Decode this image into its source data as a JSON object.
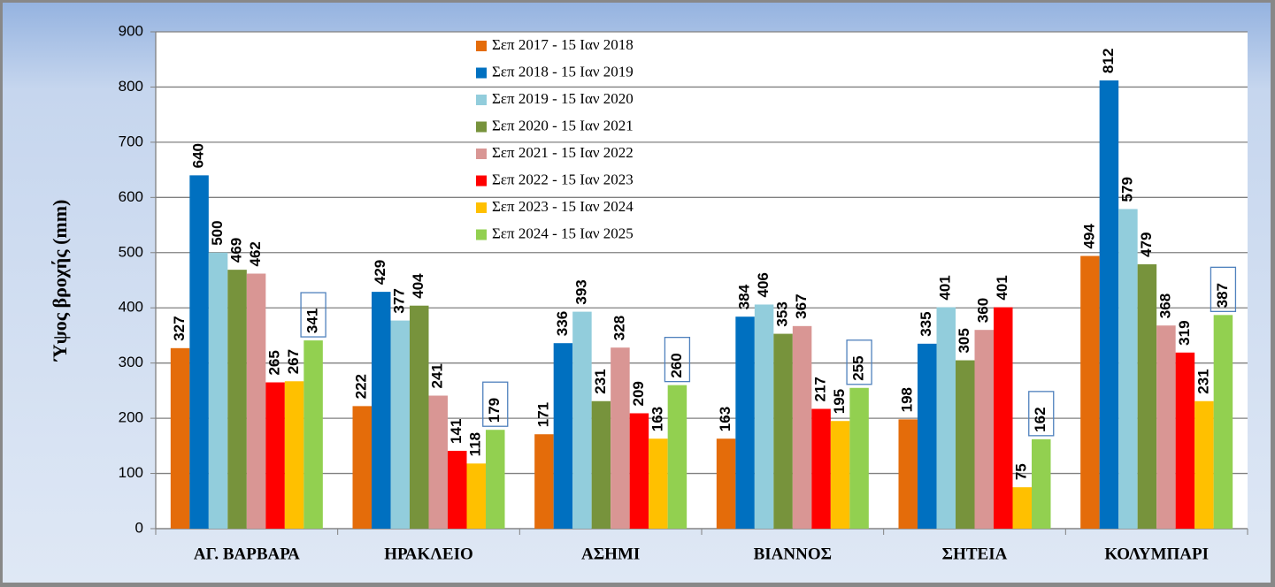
{
  "chart_data": {
    "type": "bar",
    "y_label": "Ύψος βροχής (mm)",
    "categories": [
      "ΑΓ. ΒΑΡΒΑΡΑ",
      "ΗΡΑΚΛΕΙΟ",
      "ΑΣΗΜΙ",
      "ΒΙΑΝΝΟΣ",
      "ΣΗΤΕΙΑ",
      "ΚΟΛΥΜΠΑΡΙ"
    ],
    "series": [
      {
        "name": "Σεπ 2017 - 15 Ιαν 2018",
        "color": "#e46c0a",
        "values": [
          327,
          222,
          171,
          163,
          198,
          494
        ]
      },
      {
        "name": "Σεπ 2018 - 15 Ιαν 2019",
        "color": "#0070c0",
        "values": [
          640,
          429,
          336,
          384,
          335,
          812
        ]
      },
      {
        "name": "Σεπ 2019 - 15 Ιαν 2020",
        "color": "#92cddc",
        "values": [
          500,
          377,
          393,
          406,
          401,
          579
        ]
      },
      {
        "name": "Σεπ 2020 - 15 Ιαν 2021",
        "color": "#77933c",
        "values": [
          469,
          404,
          231,
          353,
          305,
          479
        ]
      },
      {
        "name": "Σεπ 2021 - 15 Ιαν 2022",
        "color": "#d99694",
        "values": [
          462,
          241,
          328,
          367,
          360,
          368
        ]
      },
      {
        "name": "Σεπ 2022 - 15 Ιαν 2023",
        "color": "#ff0000",
        "values": [
          265,
          141,
          209,
          217,
          401,
          319
        ]
      },
      {
        "name": "Σεπ 2023 - 15 Ιαν 2024",
        "color": "#ffc000",
        "values": [
          267,
          118,
          163,
          195,
          75,
          231
        ]
      },
      {
        "name": "Σεπ 2024 - 15 Ιαν 2025",
        "color": "#92d050",
        "values": [
          341,
          179,
          260,
          255,
          162,
          387
        ]
      }
    ],
    "ylim": [
      0,
      900
    ],
    "yticks": [
      0,
      100,
      200,
      300,
      400,
      500,
      600,
      700,
      800,
      900
    ],
    "grid": true
  }
}
